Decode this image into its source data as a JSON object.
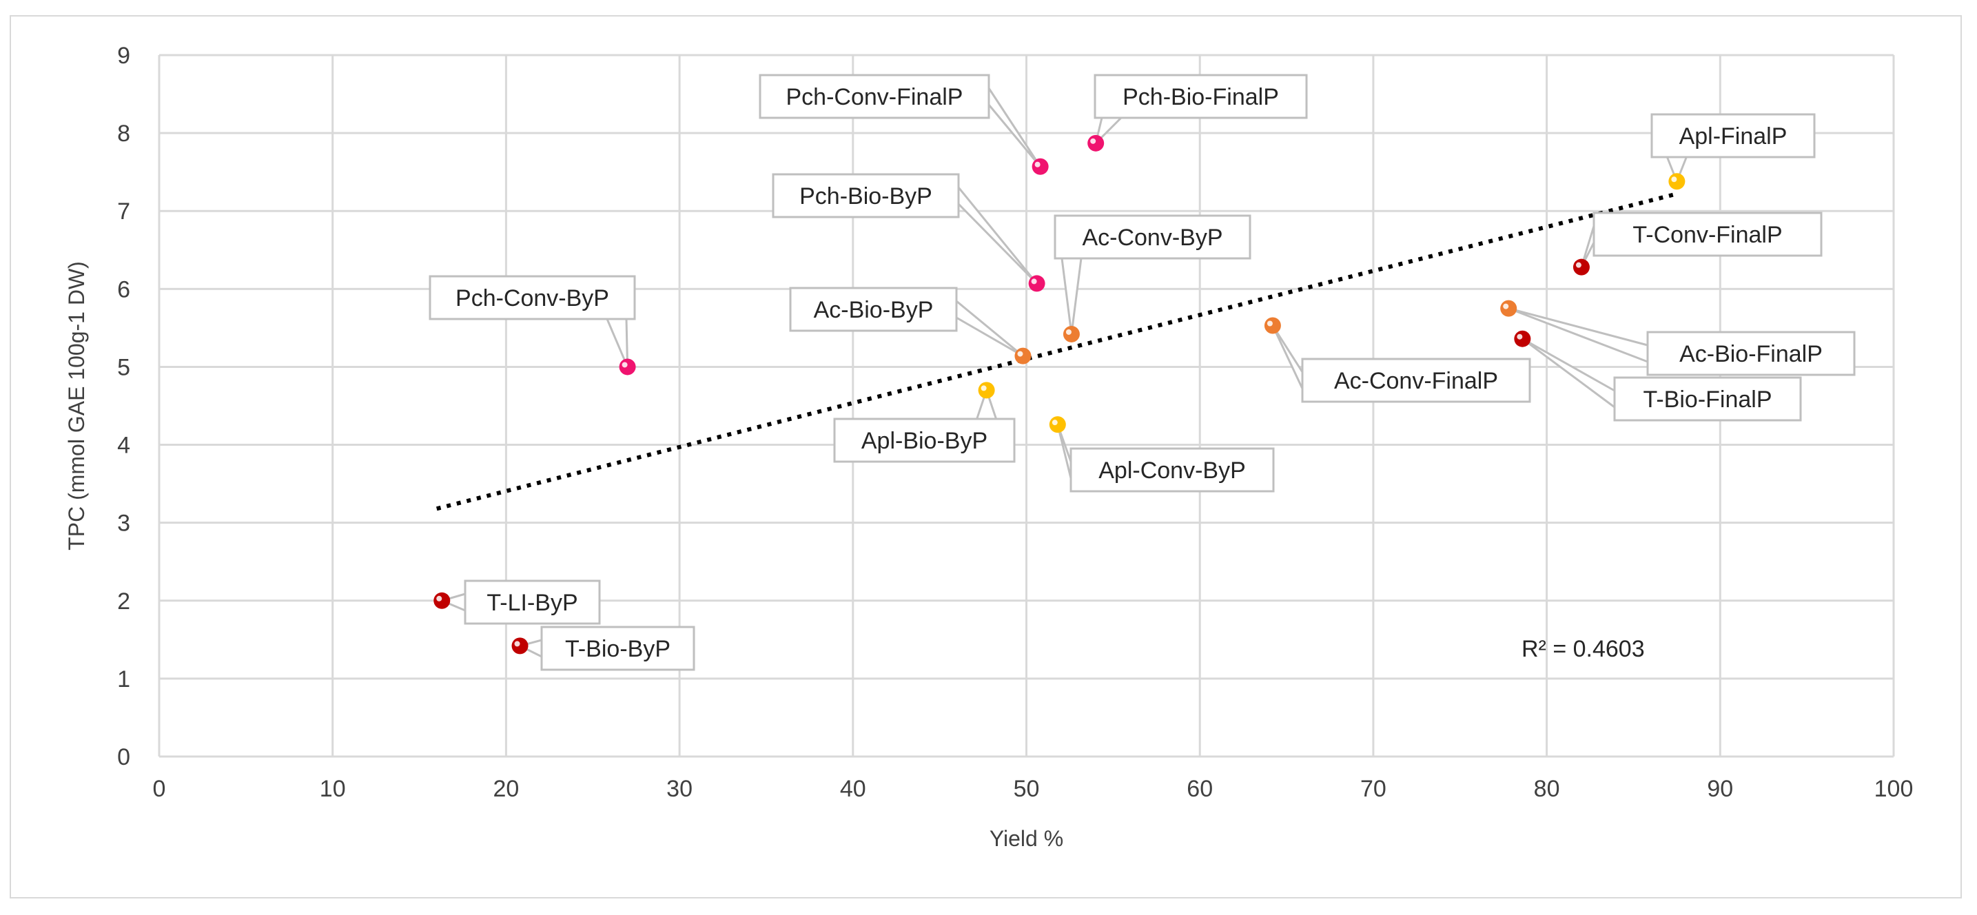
{
  "chart_data": {
    "type": "scatter",
    "title": "",
    "xlabel": "Yield %",
    "ylabel": "TPC (mmol GAE 100g-1 DW)",
    "xlim": [
      0,
      100
    ],
    "ylim": [
      0,
      9
    ],
    "x_ticks": [
      "0",
      "10",
      "20",
      "30",
      "40",
      "50",
      "60",
      "70",
      "80",
      "90",
      "100"
    ],
    "y_ticks": [
      "0",
      "1",
      "2",
      "3",
      "4",
      "5",
      "6",
      "7",
      "8",
      "9"
    ],
    "grid": true,
    "legend": "none",
    "colors": {
      "Pch": "#f0136f",
      "Ac": "#ed7d31",
      "Apl": "#ffc000",
      "T": "#c00000",
      "trendline": "#000000",
      "grid": "#d9d9d9",
      "callout_border": "#bfbfbf"
    },
    "points": [
      {
        "label": "Pch-Conv-FinalP",
        "x": 50.8,
        "y": 7.57,
        "group": "Pch"
      },
      {
        "label": "Pch-Bio-FinalP",
        "x": 54.0,
        "y": 7.87,
        "group": "Pch"
      },
      {
        "label": "Apl-FinalP",
        "x": 87.5,
        "y": 7.38,
        "group": "Apl"
      },
      {
        "label": "Pch-Bio-ByP",
        "x": 50.6,
        "y": 6.07,
        "group": "Pch"
      },
      {
        "label": "Ac-Conv-ByP",
        "x": 52.6,
        "y": 5.42,
        "group": "Ac"
      },
      {
        "label": "T-Conv-FinalP",
        "x": 82.0,
        "y": 6.28,
        "group": "T"
      },
      {
        "label": "Pch-Conv-ByP",
        "x": 27.0,
        "y": 5.0,
        "group": "Pch"
      },
      {
        "label": "Ac-Bio-ByP",
        "x": 49.8,
        "y": 5.14,
        "group": "Ac"
      },
      {
        "label": "Ac-Bio-FinalP",
        "x": 77.8,
        "y": 5.75,
        "group": "Ac"
      },
      {
        "label": "Ac-Conv-FinalP",
        "x": 64.2,
        "y": 5.53,
        "group": "Ac"
      },
      {
        "label": "T-Bio-FinalP",
        "x": 78.6,
        "y": 5.36,
        "group": "T"
      },
      {
        "label": "Apl-Bio-ByP",
        "x": 47.7,
        "y": 4.7,
        "group": "Apl"
      },
      {
        "label": "Apl-Conv-ByP",
        "x": 51.8,
        "y": 4.26,
        "group": "Apl"
      },
      {
        "label": "T-LI-ByP",
        "x": 16.3,
        "y": 2.0,
        "group": "T"
      },
      {
        "label": "T-Bio-ByP",
        "x": 20.8,
        "y": 1.42,
        "group": "T"
      }
    ],
    "trendline": {
      "type": "linear",
      "x": [
        16.0,
        87.5
      ],
      "y": [
        3.18,
        7.22
      ],
      "style": "dotted"
    },
    "annotations": [
      {
        "text": "R² = 0.4603"
      }
    ]
  }
}
